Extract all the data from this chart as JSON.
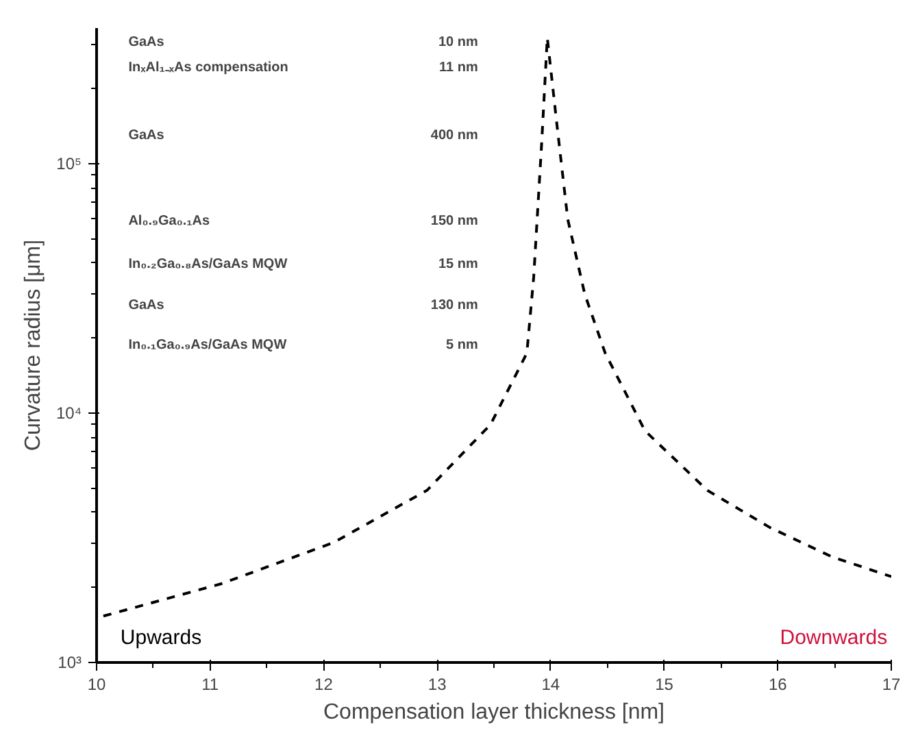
{
  "chart_data": {
    "type": "line",
    "xlabel": "Compensation layer thickness [nm]",
    "ylabel": "Curvature radius [μm]",
    "log": "y",
    "grid": false,
    "marker": "none",
    "line_style": "dashed",
    "xlim": [
      10,
      17
    ],
    "xticks": [
      10,
      11,
      12,
      13,
      14,
      15,
      16,
      17
    ],
    "ylim": [
      1000,
      350000
    ],
    "yticks": [
      {
        "value": 1000,
        "label": "10³"
      },
      {
        "value": 10000,
        "label": "10⁴"
      },
      {
        "value": 100000,
        "label": "10⁵"
      }
    ],
    "series": [
      {
        "color": "#000000",
        "x": [
          10.06,
          11.1,
          12.09,
          12.91,
          13.47,
          13.79,
          13.85,
          13.92,
          13.97,
          14.05,
          14.15,
          14.3,
          14.48,
          14.83,
          15.38,
          15.93,
          16.48,
          17.0
        ],
        "values": [
          1535,
          2070,
          3030,
          4900,
          9000,
          17400,
          35000,
          120000,
          320000,
          150000,
          60000,
          30000,
          17400,
          8500,
          4900,
          3480,
          2650,
          2210
        ]
      }
    ],
    "annotations": [
      "Upwards",
      "Downwards",
      "GaAs",
      "10 nm",
      "InₓAl₁₋ₓAs compensation",
      "11 nm",
      "GaAs",
      "400 nm",
      "Al₀.₉Ga₀.₁As",
      "150 nm",
      "In₀.₂Ga₀.₈As/GaAs MQW",
      "15 nm",
      "GaAs",
      "130 nm",
      "In₀.₁Ga₀.₉As/GaAs MQW",
      "5 nm"
    ]
  }
}
